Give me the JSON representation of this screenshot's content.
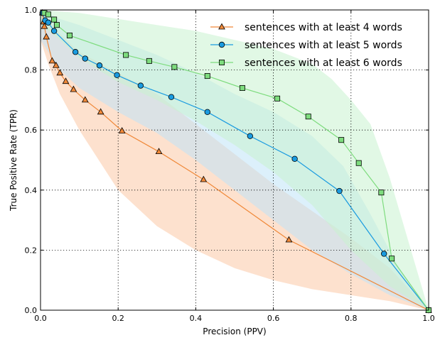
{
  "chart_data": {
    "type": "line",
    "title": "",
    "xlabel": "Precision (PPV)",
    "ylabel": "True Positive Rate (TPR)",
    "xlim": [
      0.0,
      1.0
    ],
    "ylim": [
      0.0,
      1.0
    ],
    "xticks": [
      "0.0",
      "0.2",
      "0.4",
      "0.6",
      "0.8",
      "1.0"
    ],
    "yticks": [
      "0.0",
      "0.2",
      "0.4",
      "0.6",
      "0.8",
      "1.0"
    ],
    "grid": true,
    "legend_position": "top-right",
    "series": [
      {
        "name": "sentences with at least 4 words",
        "color": "#f08838",
        "fill": "#fbc9a6",
        "marker": "triangle",
        "points": [
          [
            0.005,
            0.99
          ],
          [
            0.008,
            0.96
          ],
          [
            0.01,
            0.945
          ],
          [
            0.015,
            0.91
          ],
          [
            0.03,
            0.83
          ],
          [
            0.04,
            0.815
          ],
          [
            0.05,
            0.79
          ],
          [
            0.065,
            0.762
          ],
          [
            0.085,
            0.735
          ],
          [
            0.115,
            0.7
          ],
          [
            0.155,
            0.66
          ],
          [
            0.21,
            0.597
          ],
          [
            0.305,
            0.528
          ],
          [
            0.42,
            0.435
          ],
          [
            0.64,
            0.234
          ],
          [
            1.0,
            0.0
          ]
        ],
        "band_upper": [
          [
            0.0,
            1.0
          ],
          [
            0.01,
            0.98
          ],
          [
            0.05,
            0.92
          ],
          [
            0.1,
            0.86
          ],
          [
            0.2,
            0.79
          ],
          [
            0.3,
            0.72
          ],
          [
            0.4,
            0.62
          ],
          [
            0.5,
            0.52
          ],
          [
            0.6,
            0.42
          ],
          [
            0.7,
            0.33
          ],
          [
            0.8,
            0.24
          ],
          [
            0.9,
            0.14
          ],
          [
            1.0,
            0.0
          ]
        ],
        "band_lower": [
          [
            1.0,
            0.0
          ],
          [
            0.9,
            0.03
          ],
          [
            0.8,
            0.05
          ],
          [
            0.7,
            0.07
          ],
          [
            0.6,
            0.1
          ],
          [
            0.5,
            0.14
          ],
          [
            0.4,
            0.2
          ],
          [
            0.3,
            0.28
          ],
          [
            0.2,
            0.4
          ],
          [
            0.15,
            0.5
          ],
          [
            0.1,
            0.6
          ],
          [
            0.05,
            0.72
          ],
          [
            0.02,
            0.82
          ],
          [
            0.0,
            0.9
          ]
        ]
      },
      {
        "name": "sentences with at least 5 words",
        "color": "#1a9be0",
        "fill": "#bfe3f8",
        "marker": "circle",
        "points": [
          [
            0.005,
            0.99
          ],
          [
            0.012,
            0.965
          ],
          [
            0.02,
            0.958
          ],
          [
            0.035,
            0.93
          ],
          [
            0.09,
            0.86
          ],
          [
            0.115,
            0.838
          ],
          [
            0.152,
            0.815
          ],
          [
            0.197,
            0.783
          ],
          [
            0.258,
            0.748
          ],
          [
            0.337,
            0.71
          ],
          [
            0.43,
            0.66
          ],
          [
            0.54,
            0.58
          ],
          [
            0.655,
            0.504
          ],
          [
            0.77,
            0.397
          ],
          [
            0.885,
            0.188
          ],
          [
            1.0,
            0.0
          ]
        ],
        "band_upper": [
          [
            0.0,
            1.0
          ],
          [
            0.05,
            0.97
          ],
          [
            0.1,
            0.95
          ],
          [
            0.2,
            0.9
          ],
          [
            0.3,
            0.85
          ],
          [
            0.4,
            0.79
          ],
          [
            0.5,
            0.72
          ],
          [
            0.6,
            0.66
          ],
          [
            0.7,
            0.58
          ],
          [
            0.78,
            0.48
          ],
          [
            0.85,
            0.32
          ],
          [
            0.92,
            0.15
          ],
          [
            1.0,
            0.0
          ]
        ],
        "band_lower": [
          [
            1.0,
            0.0
          ],
          [
            0.9,
            0.05
          ],
          [
            0.8,
            0.12
          ],
          [
            0.7,
            0.2
          ],
          [
            0.6,
            0.3
          ],
          [
            0.5,
            0.4
          ],
          [
            0.4,
            0.5
          ],
          [
            0.3,
            0.59
          ],
          [
            0.2,
            0.66
          ],
          [
            0.1,
            0.74
          ],
          [
            0.05,
            0.8
          ],
          [
            0.0,
            0.9
          ]
        ]
      },
      {
        "name": "sentences with at least 6 words",
        "color": "#7edc7e",
        "fill": "#c9f2d0",
        "marker": "square",
        "points": [
          [
            0.01,
            0.99
          ],
          [
            0.02,
            0.985
          ],
          [
            0.035,
            0.968
          ],
          [
            0.042,
            0.95
          ],
          [
            0.075,
            0.915
          ],
          [
            0.22,
            0.85
          ],
          [
            0.28,
            0.83
          ],
          [
            0.345,
            0.81
          ],
          [
            0.43,
            0.78
          ],
          [
            0.52,
            0.74
          ],
          [
            0.61,
            0.705
          ],
          [
            0.69,
            0.645
          ],
          [
            0.775,
            0.567
          ],
          [
            0.82,
            0.49
          ],
          [
            0.878,
            0.392
          ],
          [
            0.905,
            0.172
          ],
          [
            1.0,
            0.0
          ]
        ],
        "band_upper": [
          [
            0.0,
            1.0
          ],
          [
            0.1,
            0.99
          ],
          [
            0.2,
            0.97
          ],
          [
            0.3,
            0.95
          ],
          [
            0.4,
            0.93
          ],
          [
            0.5,
            0.9
          ],
          [
            0.6,
            0.87
          ],
          [
            0.7,
            0.82
          ],
          [
            0.75,
            0.77
          ],
          [
            0.8,
            0.7
          ],
          [
            0.85,
            0.62
          ],
          [
            0.9,
            0.44
          ],
          [
            1.0,
            0.0
          ]
        ],
        "band_lower": [
          [
            1.0,
            0.0
          ],
          [
            0.9,
            0.08
          ],
          [
            0.8,
            0.2
          ],
          [
            0.7,
            0.35
          ],
          [
            0.6,
            0.46
          ],
          [
            0.5,
            0.55
          ],
          [
            0.4,
            0.63
          ],
          [
            0.3,
            0.7
          ],
          [
            0.2,
            0.76
          ],
          [
            0.1,
            0.84
          ],
          [
            0.05,
            0.9
          ],
          [
            0.0,
            0.95
          ]
        ]
      }
    ]
  }
}
